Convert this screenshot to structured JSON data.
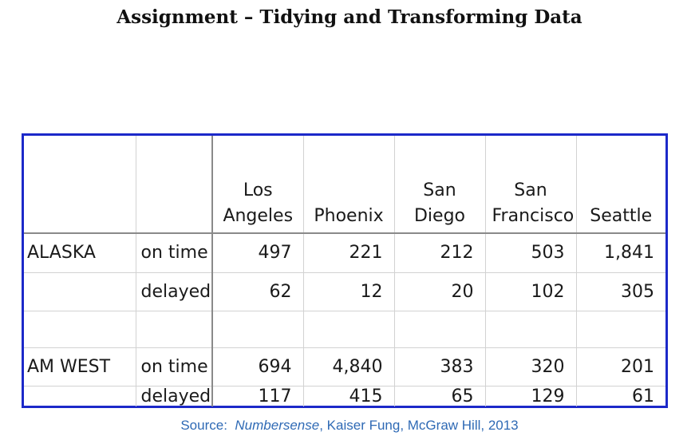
{
  "title": "Assignment – Tidying and Transforming Data",
  "table": {
    "headers": [
      {
        "line1": "Los",
        "line2": "Angeles"
      },
      {
        "line1": "",
        "line2": "Phoenix"
      },
      {
        "line1": "San",
        "line2": "Diego"
      },
      {
        "line1": "San",
        "line2": "Francisco"
      },
      {
        "line1": "",
        "line2": "Seattle"
      }
    ],
    "rows": [
      {
        "airline": "ALASKA",
        "status": "on time",
        "values": [
          "497",
          "221",
          "212",
          "503",
          "1,841"
        ]
      },
      {
        "airline": "",
        "status": "delayed",
        "values": [
          "62",
          "12",
          "20",
          "102",
          "305"
        ]
      },
      {
        "airline": "AM WEST",
        "status": "on time",
        "values": [
          "694",
          "4,840",
          "383",
          "320",
          "201"
        ]
      },
      {
        "airline": "",
        "status": "delayed",
        "values": [
          "117",
          "415",
          "65",
          "129",
          "61"
        ]
      }
    ]
  },
  "source": {
    "prefix": "Source:  ",
    "book": "Numbersense",
    "suffix": ", Kaiser Fung, McGraw Hill, 2013"
  },
  "colors": {
    "frame": "#1c29c9",
    "source_text": "#2f6ab5"
  }
}
